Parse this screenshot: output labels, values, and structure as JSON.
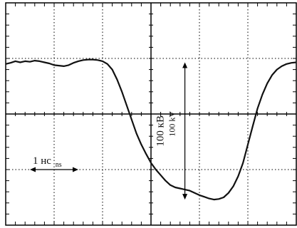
{
  "chart_data": {
    "type": "line",
    "title": "",
    "xlabel": "",
    "ylabel": "",
    "grid": true,
    "grid_style": "dotted",
    "x_divisions": 6,
    "y_divisions": 4,
    "axis_center_lines": true,
    "trace_color": "#111111",
    "xlim": [
      0,
      6
    ],
    "ylim": [
      -2,
      2
    ],
    "series": [
      {
        "values": [
          [
            0.0,
            0.9
          ],
          [
            0.1,
            0.92
          ],
          [
            0.2,
            0.95
          ],
          [
            0.3,
            0.93
          ],
          [
            0.4,
            0.95
          ],
          [
            0.5,
            0.94
          ],
          [
            0.6,
            0.96
          ],
          [
            0.7,
            0.95
          ],
          [
            0.8,
            0.93
          ],
          [
            0.9,
            0.91
          ],
          [
            1.0,
            0.88
          ],
          [
            1.1,
            0.87
          ],
          [
            1.2,
            0.86
          ],
          [
            1.3,
            0.88
          ],
          [
            1.4,
            0.92
          ],
          [
            1.5,
            0.95
          ],
          [
            1.6,
            0.97
          ],
          [
            1.7,
            0.98
          ],
          [
            1.8,
            0.98
          ],
          [
            1.9,
            0.97
          ],
          [
            2.0,
            0.95
          ],
          [
            2.1,
            0.9
          ],
          [
            2.2,
            0.8
          ],
          [
            2.3,
            0.62
          ],
          [
            2.4,
            0.4
          ],
          [
            2.5,
            0.15
          ],
          [
            2.6,
            -0.1
          ],
          [
            2.7,
            -0.35
          ],
          [
            2.8,
            -0.55
          ],
          [
            2.9,
            -0.72
          ],
          [
            3.0,
            -0.88
          ],
          [
            3.1,
            -1.0
          ],
          [
            3.2,
            -1.1
          ],
          [
            3.3,
            -1.2
          ],
          [
            3.4,
            -1.28
          ],
          [
            3.5,
            -1.32
          ],
          [
            3.6,
            -1.34
          ],
          [
            3.7,
            -1.36
          ],
          [
            3.8,
            -1.38
          ],
          [
            3.9,
            -1.42
          ],
          [
            4.0,
            -1.46
          ],
          [
            4.1,
            -1.49
          ],
          [
            4.2,
            -1.52
          ],
          [
            4.3,
            -1.54
          ],
          [
            4.4,
            -1.53
          ],
          [
            4.5,
            -1.5
          ],
          [
            4.6,
            -1.42
          ],
          [
            4.7,
            -1.3
          ],
          [
            4.8,
            -1.12
          ],
          [
            4.9,
            -0.88
          ],
          [
            5.0,
            -0.55
          ],
          [
            5.1,
            -0.22
          ],
          [
            5.2,
            0.1
          ],
          [
            5.3,
            0.35
          ],
          [
            5.4,
            0.55
          ],
          [
            5.5,
            0.7
          ],
          [
            5.6,
            0.8
          ],
          [
            5.7,
            0.86
          ],
          [
            5.8,
            0.9
          ],
          [
            5.9,
            0.92
          ],
          [
            6.0,
            0.93
          ]
        ]
      }
    ],
    "annotations": {
      "time_scale": {
        "text": "1 нс",
        "subscript": "ns",
        "x_from": 0.5,
        "x_to": 1.5,
        "y": -1.0
      },
      "amplitude_scale": {
        "text_ru": "100 кВ",
        "text_en": "100 kV",
        "x": 3.7,
        "y_from": 0.93,
        "y_to": -1.54
      }
    }
  }
}
